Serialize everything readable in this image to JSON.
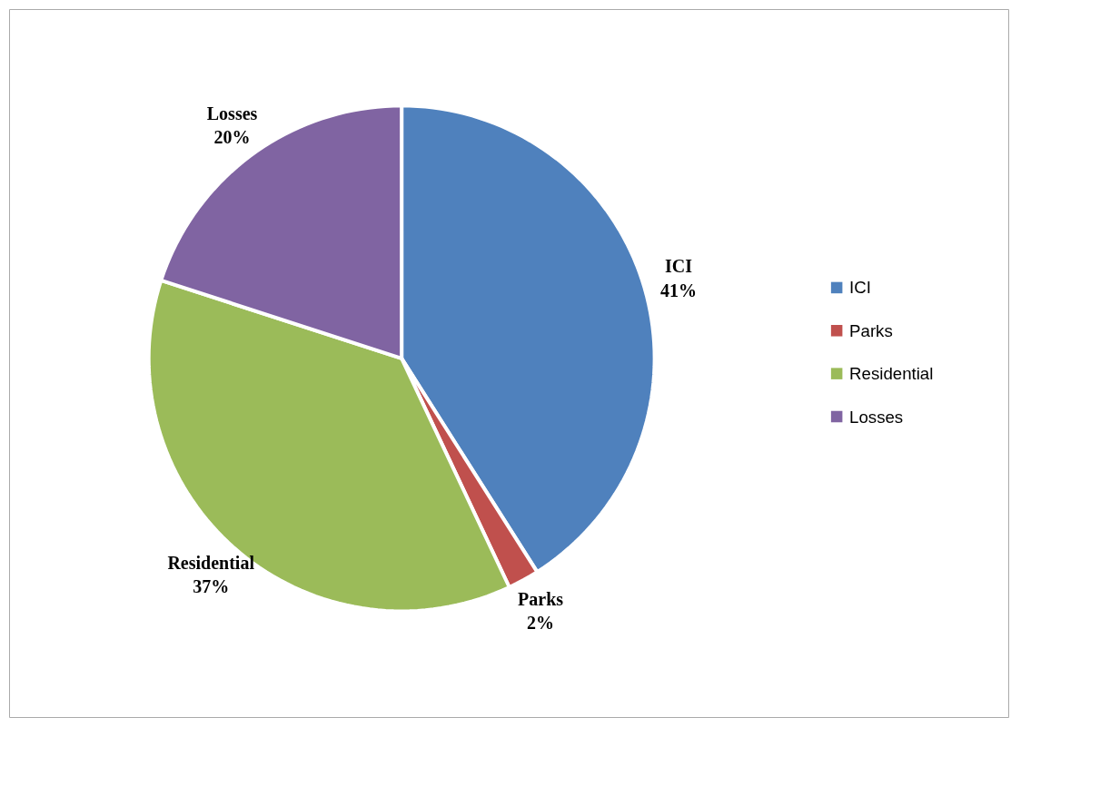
{
  "chart_data": {
    "type": "pie",
    "categories": [
      "ICI",
      "Parks",
      "Residential",
      "Losses"
    ],
    "values": [
      41,
      2,
      37,
      20
    ],
    "colors": [
      "#4f81bd",
      "#c0504d",
      "#9bbb59",
      "#8064a2"
    ],
    "value_labels": [
      "41%",
      "2%",
      "37%",
      "20%"
    ],
    "legend": "right"
  }
}
